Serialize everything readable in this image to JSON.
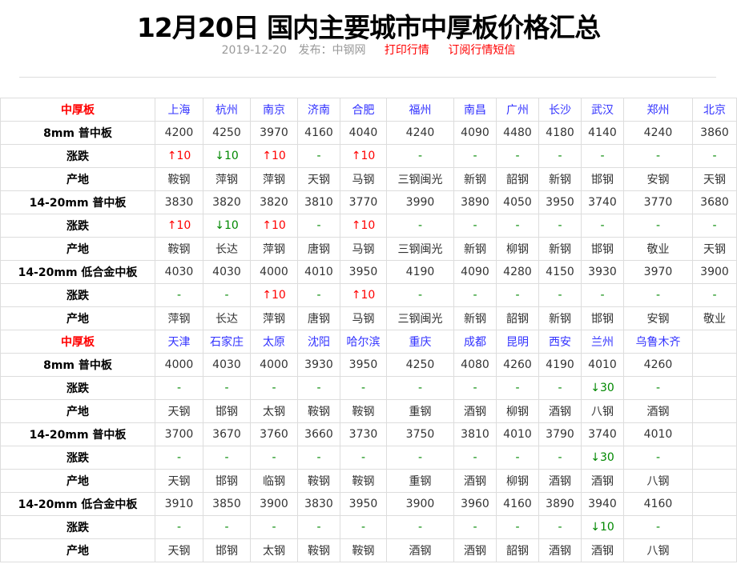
{
  "header": {
    "title": "12月20日 国内主要城市中厚板价格汇总",
    "date": "2019-12-20",
    "publisher": "发布：中钢网",
    "print_link": "打印行情",
    "subscribe_link": "订阅行情短信"
  },
  "colors": {
    "up": "#ff0000",
    "down": "#008800",
    "city": "#3333ff",
    "section": "#ff0000"
  },
  "sections": [
    {
      "label": "中厚板",
      "cities": [
        "上海",
        "杭州",
        "南京",
        "济南",
        "合肥",
        "福州",
        "南昌",
        "广州",
        "长沙",
        "武汉",
        "郑州",
        "北京"
      ],
      "rows": [
        {
          "label": "8mm 普中板",
          "type": "price",
          "values": [
            "4200",
            "4250",
            "3970",
            "4160",
            "4040",
            "4240",
            "4090",
            "4480",
            "4180",
            "4140",
            "4240",
            "3860"
          ]
        },
        {
          "label": "涨跌",
          "type": "change",
          "values": [
            "↑10",
            "↓10",
            "↑10",
            "-",
            "↑10",
            "-",
            "-",
            "-",
            "-",
            "-",
            "-",
            "-"
          ]
        },
        {
          "label": "产地",
          "type": "origin",
          "values": [
            "鞍钢",
            "萍钢",
            "萍钢",
            "天钢",
            "马钢",
            "三钢闽光",
            "新钢",
            "韶钢",
            "新钢",
            "邯钢",
            "安钢",
            "天钢"
          ]
        },
        {
          "label": "14-20mm 普中板",
          "type": "price",
          "values": [
            "3830",
            "3820",
            "3820",
            "3810",
            "3770",
            "3990",
            "3890",
            "4050",
            "3950",
            "3740",
            "3770",
            "3680"
          ]
        },
        {
          "label": "涨跌",
          "type": "change",
          "values": [
            "↑10",
            "↓10",
            "↑10",
            "-",
            "↑10",
            "-",
            "-",
            "-",
            "-",
            "-",
            "-",
            "-"
          ]
        },
        {
          "label": "产地",
          "type": "origin",
          "values": [
            "鞍钢",
            "长达",
            "萍钢",
            "唐钢",
            "马钢",
            "三钢闽光",
            "新钢",
            "柳钢",
            "新钢",
            "邯钢",
            "敬业",
            "天钢"
          ]
        },
        {
          "label": "14-20mm 低合金中板",
          "type": "price",
          "values": [
            "4030",
            "4030",
            "4000",
            "4010",
            "3950",
            "4190",
            "4090",
            "4280",
            "4150",
            "3930",
            "3970",
            "3900"
          ]
        },
        {
          "label": "涨跌",
          "type": "change",
          "values": [
            "-",
            "-",
            "↑10",
            "-",
            "↑10",
            "-",
            "-",
            "-",
            "-",
            "-",
            "-",
            "-"
          ]
        },
        {
          "label": "产地",
          "type": "origin",
          "values": [
            "萍钢",
            "长达",
            "萍钢",
            "唐钢",
            "马钢",
            "三钢闽光",
            "新钢",
            "韶钢",
            "新钢",
            "邯钢",
            "安钢",
            "敬业"
          ]
        }
      ]
    },
    {
      "label": "中厚板",
      "cities": [
        "天津",
        "石家庄",
        "太原",
        "沈阳",
        "哈尔滨",
        "重庆",
        "成都",
        "昆明",
        "西安",
        "兰州",
        "乌鲁木齐",
        ""
      ],
      "rows": [
        {
          "label": "8mm 普中板",
          "type": "price",
          "values": [
            "4000",
            "4030",
            "4000",
            "3930",
            "3950",
            "4250",
            "4080",
            "4260",
            "4190",
            "4010",
            "4260",
            ""
          ]
        },
        {
          "label": "涨跌",
          "type": "change",
          "values": [
            "-",
            "-",
            "-",
            "-",
            "-",
            "-",
            "-",
            "-",
            "-",
            "↓30",
            "-",
            ""
          ]
        },
        {
          "label": "产地",
          "type": "origin",
          "values": [
            "天钢",
            "邯钢",
            "太钢",
            "鞍钢",
            "鞍钢",
            "重钢",
            "酒钢",
            "柳钢",
            "酒钢",
            "八钢",
            "酒钢",
            ""
          ]
        },
        {
          "label": "14-20mm 普中板",
          "type": "price",
          "values": [
            "3700",
            "3670",
            "3760",
            "3660",
            "3730",
            "3750",
            "3810",
            "4010",
            "3790",
            "3740",
            "4010",
            ""
          ]
        },
        {
          "label": "涨跌",
          "type": "change",
          "values": [
            "-",
            "-",
            "-",
            "-",
            "-",
            "-",
            "-",
            "-",
            "-",
            "↓30",
            "-",
            ""
          ]
        },
        {
          "label": "产地",
          "type": "origin",
          "values": [
            "天钢",
            "邯钢",
            "临钢",
            "鞍钢",
            "鞍钢",
            "重钢",
            "酒钢",
            "柳钢",
            "酒钢",
            "酒钢",
            "八钢",
            ""
          ]
        },
        {
          "label": "14-20mm 低合金中板",
          "type": "price",
          "values": [
            "3910",
            "3850",
            "3900",
            "3830",
            "3950",
            "3900",
            "3960",
            "4160",
            "3890",
            "3940",
            "4160",
            ""
          ]
        },
        {
          "label": "涨跌",
          "type": "change",
          "values": [
            "-",
            "-",
            "-",
            "-",
            "-",
            "-",
            "-",
            "-",
            "-",
            "↓10",
            "-",
            ""
          ]
        },
        {
          "label": "产地",
          "type": "origin",
          "values": [
            "天钢",
            "邯钢",
            "太钢",
            "鞍钢",
            "鞍钢",
            "酒钢",
            "酒钢",
            "韶钢",
            "酒钢",
            "酒钢",
            "八钢",
            ""
          ]
        }
      ]
    }
  ]
}
